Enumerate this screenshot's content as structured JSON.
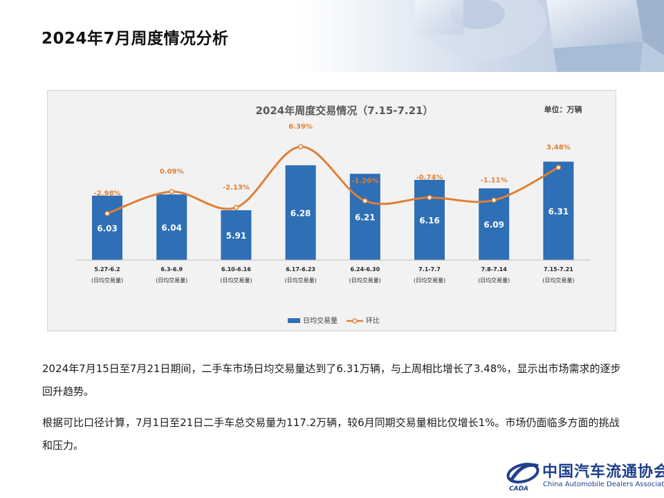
{
  "page": {
    "title": "2024年7月周度情况分析",
    "paragraph1": "2024年7月15日至7月21日期间，二手车市场日均交易量达到了6.31万辆，与上周相比增长了3.48%，显示出市场需求的逐步回升趋势。",
    "paragraph2": "根据可比口径计算，7月1日至21日二手车总交易量为117.2万辆，较6月同期交易量相比仅增长1%。市场仍面临多方面的挑战和压力。"
  },
  "logo": {
    "cn": "中国汽车流通协会",
    "en": "China Automobile Dealers Association",
    "mark_text": "CADA"
  },
  "chart_data": {
    "type": "bar",
    "title": "2024年周度交易情况（7.15-7.21）",
    "unit": "单位：万辆",
    "categories": [
      "5.27-6.2",
      "6.3-6.9",
      "6.10-6.16",
      "6.17-6.23",
      "6.24-6.30",
      "7.1-7.7",
      "7.8-7.14",
      "7.15-7.21"
    ],
    "category_sublabel": "(日均交易量)",
    "series": [
      {
        "name": "日均交易量",
        "kind": "bar",
        "color": "#2e6fb5",
        "values": [
          6.03,
          6.04,
          5.91,
          6.28,
          6.21,
          6.16,
          6.09,
          6.31
        ]
      },
      {
        "name": "环比",
        "kind": "line",
        "color": "#e07f35",
        "values": [
          -2.98,
          0.09,
          -2.13,
          6.39,
          -1.2,
          -0.74,
          -1.11,
          3.48
        ],
        "labels": [
          "-2.98%",
          "0.09%",
          "-2.13%",
          "6.39%",
          "-1.20%",
          "-0.74%",
          "-1.11%",
          "3.48%"
        ]
      }
    ],
    "legend_position": "bottom",
    "grid": false
  }
}
